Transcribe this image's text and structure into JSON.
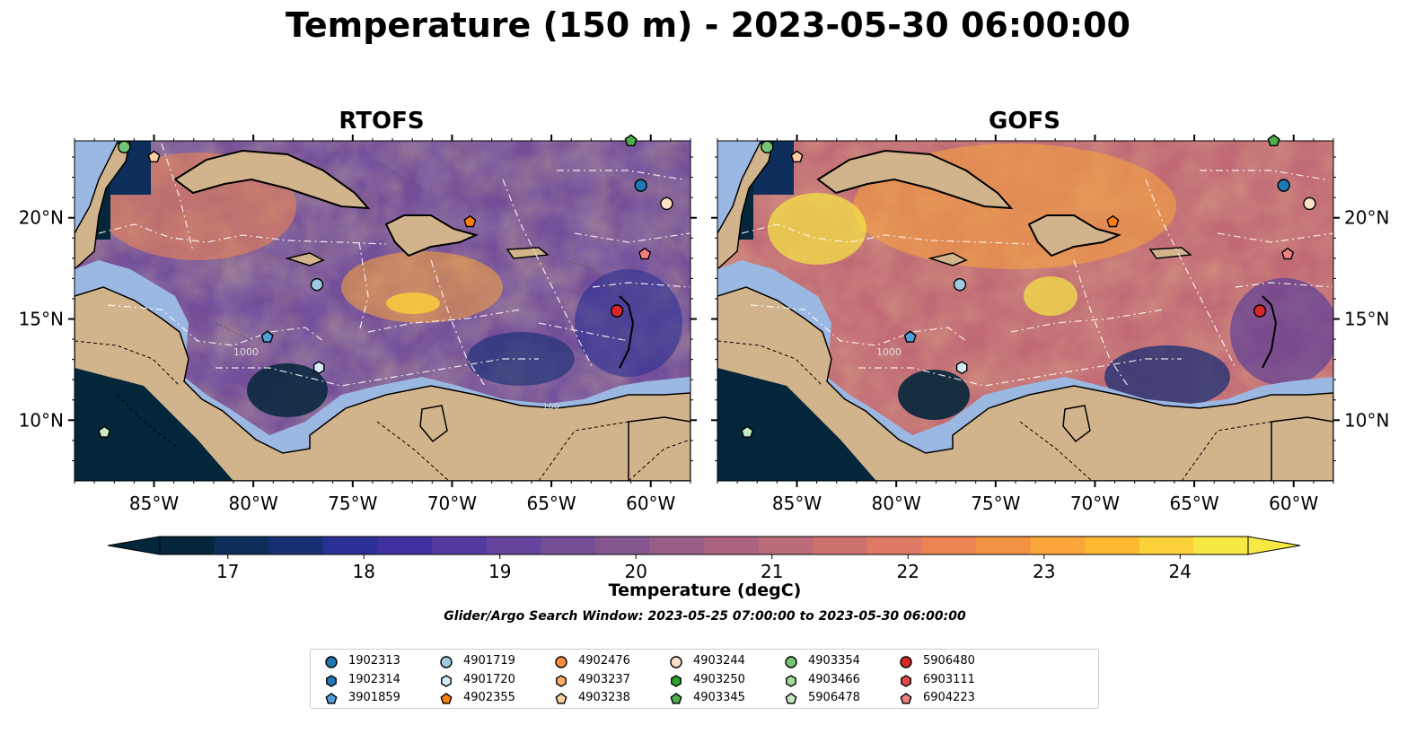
{
  "title": "Temperature (150 m) - 2023-05-30 06:00:00",
  "panels": [
    {
      "name": "RTOFS"
    },
    {
      "name": "GOFS"
    }
  ],
  "x_ticks": [
    "85°W",
    "80°W",
    "75°W",
    "70°W",
    "65°W",
    "60°W"
  ],
  "y_ticks": [
    "20°N",
    "15°N",
    "10°N"
  ],
  "colorbar": {
    "label": "Temperature (degC)",
    "ticks": [
      "17",
      "18",
      "19",
      "20",
      "21",
      "22",
      "23",
      "24"
    ],
    "min": 16.5,
    "max": 24.5,
    "colors": [
      "#03263a",
      "#0d2e5a",
      "#182f76",
      "#2a3095",
      "#3f31a0",
      "#533aa0",
      "#64449c",
      "#744e97",
      "#855590",
      "#995e88",
      "#aa6380",
      "#bc6b78",
      "#ce7270",
      "#df7a66",
      "#ec8453",
      "#f49243",
      "#fba63a",
      "#fdb932",
      "#fdd13a",
      "#f7e943"
    ]
  },
  "contour_labels": [
    "1000",
    "100"
  ],
  "search_window": "Glider/Argo Search Window: 2023-05-25 07:00:00 to 2023-05-30 06:00:00",
  "legend": [
    {
      "id": "1902313",
      "color": "#1f77b4",
      "marker": "circle"
    },
    {
      "id": "1902314",
      "color": "#1f77b4",
      "marker": "hexagon"
    },
    {
      "id": "3901859",
      "color": "#4f9fd8",
      "marker": "pentagon"
    },
    {
      "id": "4901719",
      "color": "#9ecae1",
      "marker": "circle"
    },
    {
      "id": "4901720",
      "color": "#d4ecf7",
      "marker": "hexagon"
    },
    {
      "id": "4902355",
      "color": "#ff7f0e",
      "marker": "pentagon"
    },
    {
      "id": "4902476",
      "color": "#fd8d3c",
      "marker": "circle"
    },
    {
      "id": "4903237",
      "color": "#fdae6b",
      "marker": "hexagon"
    },
    {
      "id": "4903238",
      "color": "#fdd0a2",
      "marker": "pentagon"
    },
    {
      "id": "4903244",
      "color": "#fde0c8",
      "marker": "circle"
    },
    {
      "id": "4903250",
      "color": "#2ca02c",
      "marker": "hexagon"
    },
    {
      "id": "4903345",
      "color": "#4cb04c",
      "marker": "pentagon"
    },
    {
      "id": "4903354",
      "color": "#74c476",
      "marker": "circle"
    },
    {
      "id": "4903466",
      "color": "#a1d99b",
      "marker": "hexagon"
    },
    {
      "id": "5906478",
      "color": "#c7e9c0",
      "marker": "pentagon"
    },
    {
      "id": "5906480",
      "color": "#d62728",
      "marker": "circle"
    },
    {
      "id": "6903111",
      "color": "#e34a4a",
      "marker": "hexagon"
    },
    {
      "id": "6904223",
      "color": "#f08080",
      "marker": "pentagon"
    }
  ],
  "map_markers": [
    {
      "id": "4903354",
      "lon": -86.5,
      "lat": 23.5
    },
    {
      "id": "4903238",
      "lon": -85.0,
      "lat": 23.0
    },
    {
      "id": "4903345",
      "lon": -61.0,
      "lat": 23.8
    },
    {
      "id": "1902313",
      "lon": -60.5,
      "lat": 21.6
    },
    {
      "id": "4903244",
      "lon": -59.2,
      "lat": 20.7
    },
    {
      "id": "4902355",
      "lon": -69.1,
      "lat": 19.8
    },
    {
      "id": "6904223",
      "lon": -60.3,
      "lat": 18.2
    },
    {
      "id": "4901719",
      "lon": -76.8,
      "lat": 16.7
    },
    {
      "id": "5906480",
      "lon": -61.7,
      "lat": 15.4
    },
    {
      "id": "3901859",
      "lon": -79.3,
      "lat": 14.1
    },
    {
      "id": "4901720",
      "lon": -76.7,
      "lat": 12.6
    },
    {
      "id": "5906478",
      "lon": -87.5,
      "lat": 9.4
    }
  ]
}
